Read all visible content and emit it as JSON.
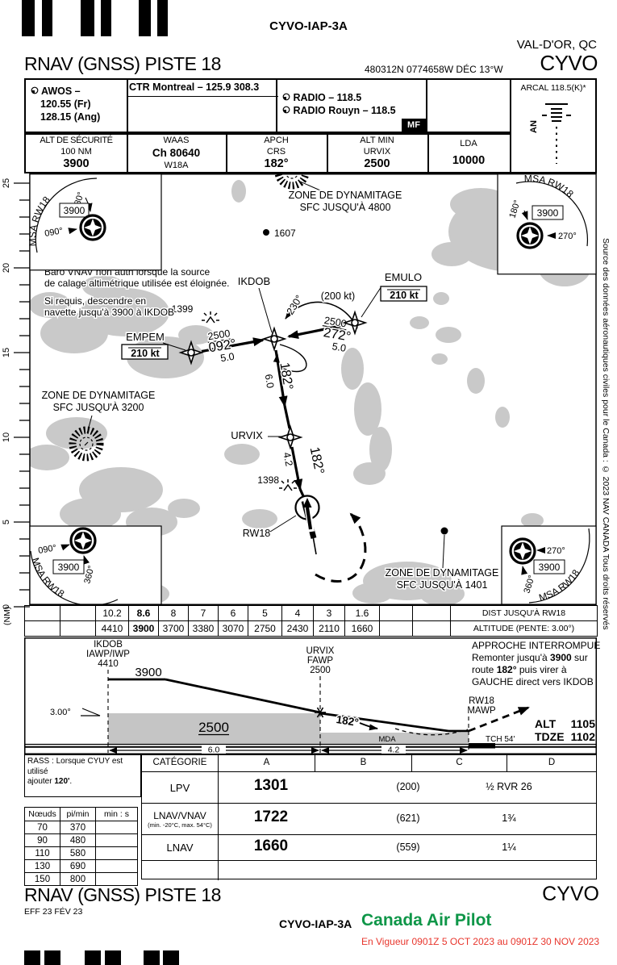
{
  "header": {
    "chart_id": "CYVO-IAP-3A",
    "city": "VAL-D'OR, QC",
    "title": "RNAV (GNSS) PISTE 18",
    "coords": "480312N  0774658W  DÉC 13°W",
    "icao": "CYVO"
  },
  "comm": {
    "awos_label": "AWOS –",
    "awos_fr": "120.55 (Fr)",
    "awos_ang": "128.15 (Ang)",
    "ctr": "CTR Montreal – 125.9  308.3",
    "radio1": "RADIO – 118.5",
    "radio2": "RADIO Rouyn – 118.5",
    "mf": "MF",
    "arcal_title": "ARCAL 118.5(K)*",
    "arcal_an": "AN"
  },
  "databoxes": {
    "alt_securite": {
      "l1": "ALT DE SÉCURITÉ",
      "l2": "100 NM",
      "value": "3900"
    },
    "waas": {
      "l1": "WAAS",
      "value": "Ch 80640",
      "l3": "W18A"
    },
    "apch": {
      "l1": "APCH",
      "l2": "CRS",
      "value": "182°"
    },
    "alt_min": {
      "l1": "ALT MIN",
      "l2": "URVIX",
      "value": "2500"
    },
    "lda": {
      "l1": "LDA",
      "value": "10000"
    }
  },
  "plan": {
    "notes": {
      "n1": "Baro VNAV non auth lorsque la source",
      "n2": "de calage altimétrique utilisée est éloignée.",
      "n3": "Si requis, descendre en",
      "n4": "navette jusqu'à 3900 à IKDOB"
    },
    "msa": {
      "arc": "MSA   RW18",
      "value": "3900",
      "tl_a": "180°",
      "tl_b": "090°",
      "tr_a": "180°",
      "tr_b": "270°",
      "bl_a": "090°",
      "bl_b": "360°",
      "br_a": "270°",
      "br_b": "360°"
    },
    "zones": {
      "z4800_1": "ZONE DE DYNAMITAGE",
      "z4800_2": "SFC JUSQU'À 4800",
      "z3200_1": "ZONE DE DYNAMITAGE",
      "z3200_2": "SFC JUSQU'À 3200",
      "z1401_1": "ZONE DE DYNAMITAGE",
      "z1401_2": "SFC JUSQU'À 1401"
    },
    "obstacles": {
      "o1607": "1607",
      "o1399": "1399",
      "o1398": "1398"
    },
    "waypoints": {
      "ikdob": "IKDOB",
      "emulo": "EMULO",
      "empem": "EMPEM",
      "urvix": "URVIX",
      "rw18": "RW18"
    },
    "speed_box": "210 kt",
    "turn": {
      "crs": "230°",
      "speed": "(200 kt)"
    },
    "legs": {
      "empem_ikdob": {
        "alt": "2500",
        "crs": "092°",
        "dist": "5.0"
      },
      "emulo_ikdob": {
        "alt": "2500",
        "crs": "272°",
        "dist": "5.0"
      },
      "ikdob_urvix": {
        "crs": "182°",
        "dist": "6.0"
      },
      "urvix_rw18": {
        "crs": "182°",
        "dist": "4.2"
      }
    },
    "scale": {
      "ticks": [
        "25",
        "20",
        "15",
        "10",
        "5",
        "0"
      ],
      "unit": "(NM)"
    }
  },
  "copyright": "Source des données aéronautiques civiles pour le Canada : © 2023 NAV CANADA Tous droits réservés",
  "dist_table": {
    "r1": [
      "10.2",
      "8.6",
      "8",
      "7",
      "6",
      "5",
      "4",
      "3",
      "1.6"
    ],
    "r1_label": "DIST JUSQU'À RW18",
    "r2": [
      "4410",
      "3900",
      "3700",
      "3380",
      "3070",
      "2750",
      "2430",
      "2110",
      "1660"
    ],
    "r2_label": "ALTITUDE (PENTE: 3.00°)"
  },
  "profile": {
    "ikdob_l1": "IKDOB",
    "ikdob_l2": "IAWP/IWP",
    "ikdob_l3": "4410",
    "urvix_l1": "URVIX",
    "urvix_l2": "FAWP",
    "urvix_l3": "2500",
    "rw18_l1": "RW18",
    "rw18_l2": "MAWP",
    "alt_3900": "3900",
    "angle": "3.00°",
    "box_2500": "2500",
    "mda": "MDA",
    "crs": "182°",
    "dist1": "6.0",
    "dist2": "4.2",
    "tch": "TCH 54'",
    "alt_label": "ALT",
    "alt_value": "1105",
    "tdze_label": "TDZE",
    "tdze_value": "1102",
    "missed": {
      "l1": "APPROCHE INTERROMPUE",
      "l2a": "Remonter jusqu'à ",
      "l2b": "3900",
      "l2c": " sur",
      "l3a": "route ",
      "l3b": "182°",
      "l3c": " puis virer à",
      "l4": "GAUCHE direct vers IKDOB"
    }
  },
  "minima": {
    "rass_1": "RASS : Lorsque CYUY est utilisé",
    "rass_2a": "ajouter ",
    "rass_2b": "120'",
    "rass_2c": ".",
    "climb": {
      "h1": "Nœuds",
      "h2": "pi/min",
      "h3": "min : s",
      "rows": [
        [
          "70",
          "370"
        ],
        [
          "90",
          "480"
        ],
        [
          "110",
          "580"
        ],
        [
          "130",
          "690"
        ],
        [
          "150",
          "800"
        ]
      ]
    },
    "categorie": "CATÉGORIE",
    "cat_a": "A",
    "cat_b": "B",
    "cat_c": "C",
    "cat_d": "D",
    "lpv": {
      "label": "LPV",
      "da": "1301",
      "hat": "(200)",
      "vis": "½ RVR 26"
    },
    "lnav_vnav": {
      "label": "LNAV/VNAV",
      "sub": "(min. -20°C, max. 54°C)",
      "da": "1722",
      "hat": "(621)",
      "vis": "1¾"
    },
    "lnav": {
      "label": "LNAV",
      "da": "1660",
      "hat": "(559)",
      "vis": "1¼"
    }
  },
  "footer": {
    "title": "RNAV (GNSS) PISTE 18",
    "icao": "CYVO",
    "eff": "EFF 23 FÉV 23",
    "chart_id": "CYVO-IAP-3A",
    "brand": "Canada Air Pilot",
    "validity": "En Vigueur 0901Z 5 OCT 2023 au 0901Z 30 NOV 2023"
  },
  "colors": {
    "brand_green": "#0e9648",
    "validity_red": "#e8362d",
    "water_gray": "#c9c9c9"
  }
}
